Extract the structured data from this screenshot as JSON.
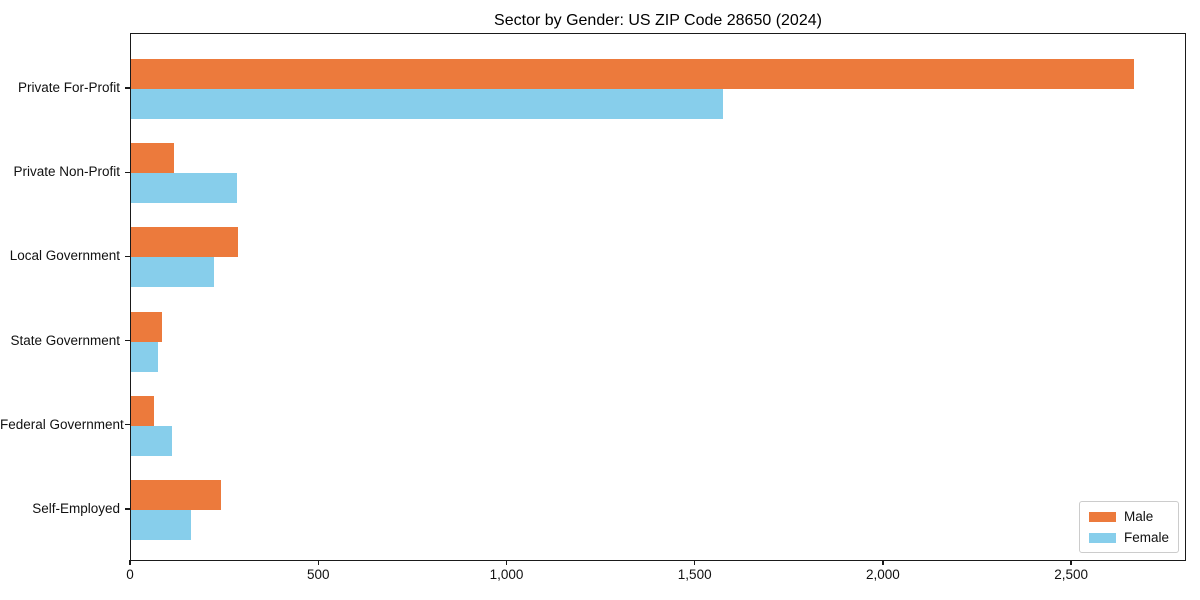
{
  "chart_data": {
    "type": "bar",
    "orientation": "horizontal",
    "title": "Sector by Gender: US ZIP Code 28650 (2024)",
    "categories": [
      "Private For-Profit",
      "Private Non-Profit",
      "Local Government",
      "State Government",
      "Federal Government",
      "Self-Employed"
    ],
    "series": [
      {
        "name": "Male",
        "color": "#ec7a3c",
        "values": [
          2670,
          115,
          285,
          82,
          60,
          240
        ]
      },
      {
        "name": "Female",
        "color": "#87ceeb",
        "values": [
          1575,
          282,
          220,
          73,
          110,
          160
        ]
      }
    ],
    "xlabel": "",
    "ylabel": "",
    "xlim": [
      0,
      2805
    ],
    "xticks": {
      "values": [
        0,
        500,
        1000,
        1500,
        2000,
        2500
      ],
      "labels": [
        "0",
        "500",
        "1,000",
        "1,500",
        "2,000",
        "2,500"
      ]
    },
    "grid": false,
    "legend": {
      "position": "lower right",
      "entries": [
        "Male",
        "Female"
      ]
    }
  }
}
